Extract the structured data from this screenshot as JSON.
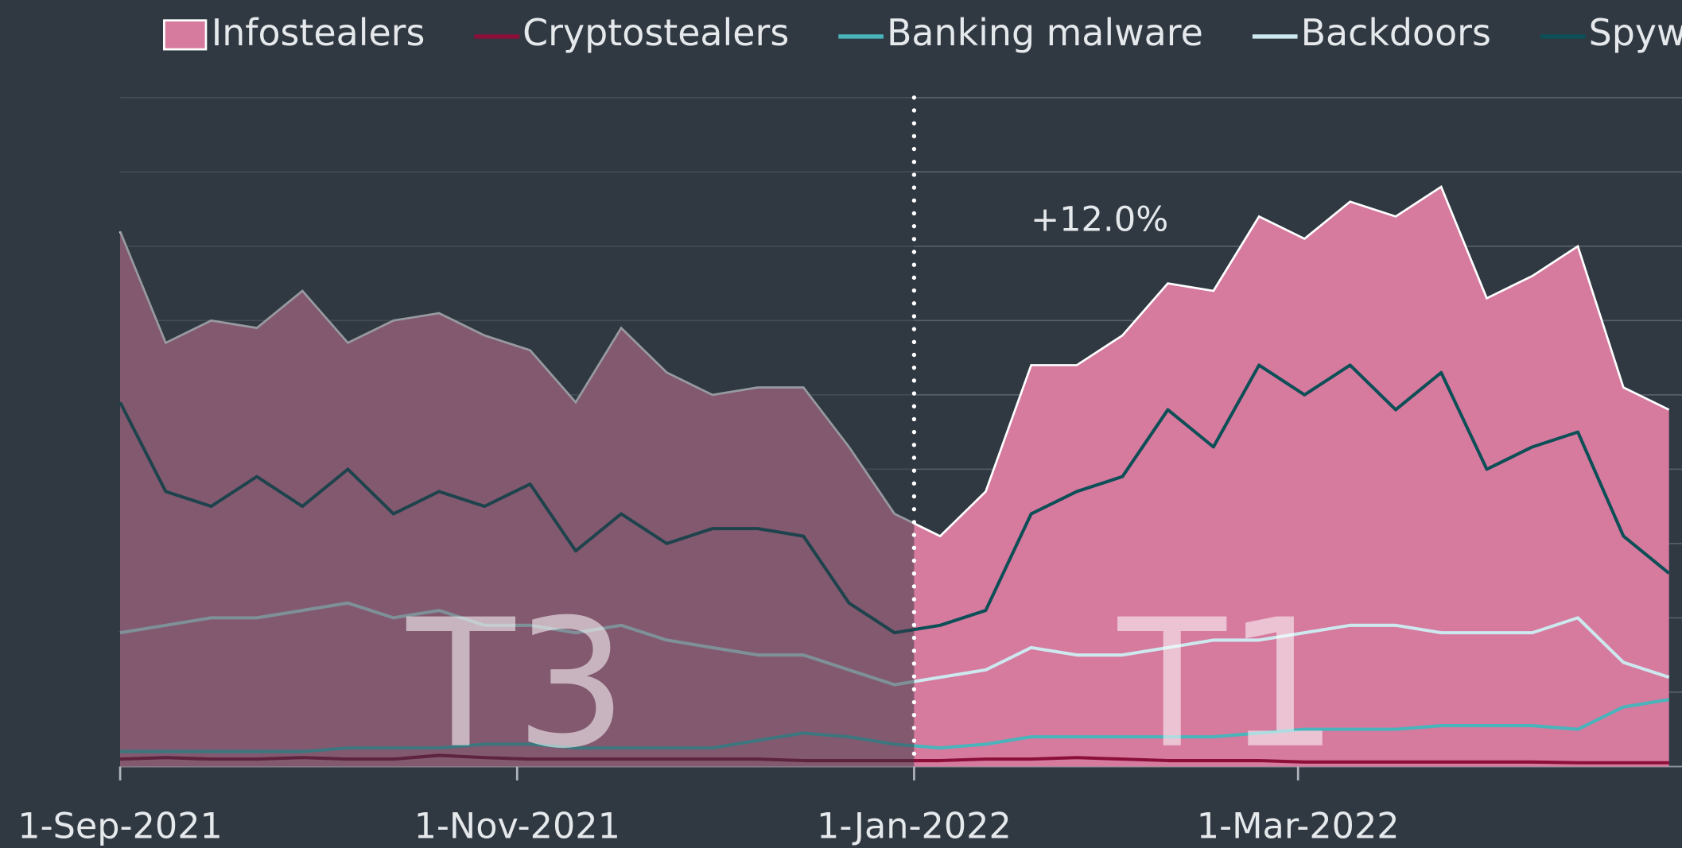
{
  "chart_data": {
    "type": "line",
    "x": [
      "2021-09-01",
      "2021-09-08",
      "2021-09-15",
      "2021-09-22",
      "2021-09-29",
      "2021-10-06",
      "2021-10-13",
      "2021-10-20",
      "2021-10-27",
      "2021-11-03",
      "2021-11-10",
      "2021-11-17",
      "2021-11-24",
      "2021-12-01",
      "2021-12-08",
      "2021-12-15",
      "2021-12-22",
      "2021-12-29",
      "2022-01-05",
      "2022-01-12",
      "2022-01-19",
      "2022-01-26",
      "2022-02-02",
      "2022-02-09",
      "2022-02-16",
      "2022-02-23",
      "2022-03-02",
      "2022-03-09",
      "2022-03-16",
      "2022-03-23",
      "2022-03-30",
      "2022-04-06",
      "2022-04-13",
      "2022-04-20",
      "2022-04-27"
    ],
    "series": [
      {
        "name": "Infostealers",
        "color": "#d67a9e",
        "fill": true,
        "values": [
          7.2,
          5.7,
          6.0,
          5.9,
          6.4,
          5.7,
          6.0,
          6.1,
          5.8,
          5.6,
          4.9,
          5.9,
          5.3,
          5.0,
          5.1,
          5.1,
          4.3,
          3.4,
          3.1,
          3.7,
          5.4,
          5.4,
          5.8,
          6.5,
          6.4,
          7.4,
          7.1,
          7.6,
          7.4,
          7.8,
          6.3,
          6.6,
          7.0,
          5.1,
          4.8
        ]
      },
      {
        "name": "Cryptostealers",
        "color": "#8c0f3a",
        "values": [
          0.1,
          0.12,
          0.1,
          0.1,
          0.12,
          0.1,
          0.1,
          0.15,
          0.12,
          0.1,
          0.1,
          0.1,
          0.1,
          0.1,
          0.1,
          0.08,
          0.08,
          0.08,
          0.08,
          0.1,
          0.1,
          0.12,
          0.1,
          0.08,
          0.08,
          0.08,
          0.06,
          0.06,
          0.06,
          0.06,
          0.06,
          0.06,
          0.05,
          0.05,
          0.05
        ]
      },
      {
        "name": "Banking malware",
        "color": "#4ab4bb",
        "values": [
          0.2,
          0.2,
          0.2,
          0.2,
          0.2,
          0.25,
          0.25,
          0.25,
          0.3,
          0.3,
          0.25,
          0.25,
          0.25,
          0.25,
          0.35,
          0.45,
          0.4,
          0.3,
          0.25,
          0.3,
          0.4,
          0.4,
          0.4,
          0.4,
          0.4,
          0.45,
          0.5,
          0.5,
          0.5,
          0.55,
          0.55,
          0.55,
          0.5,
          0.8,
          0.9
        ]
      },
      {
        "name": "Backdoors",
        "color": "#cde8ee",
        "values": [
          1.8,
          1.9,
          2.0,
          2.0,
          2.1,
          2.2,
          2.0,
          2.1,
          1.9,
          1.9,
          1.8,
          1.9,
          1.7,
          1.6,
          1.5,
          1.5,
          1.3,
          1.1,
          1.2,
          1.3,
          1.6,
          1.5,
          1.5,
          1.6,
          1.7,
          1.7,
          1.8,
          1.9,
          1.9,
          1.8,
          1.8,
          1.8,
          2.0,
          1.4,
          1.2
        ]
      },
      {
        "name": "Spyware",
        "color": "#0d4f57",
        "values": [
          4.9,
          3.7,
          3.5,
          3.9,
          3.5,
          4.0,
          3.4,
          3.7,
          3.5,
          3.8,
          2.9,
          3.4,
          3.0,
          3.2,
          3.2,
          3.1,
          2.2,
          1.8,
          1.9,
          2.1,
          3.4,
          3.7,
          3.9,
          4.8,
          4.3,
          5.4,
          5.0,
          5.4,
          4.8,
          5.3,
          4.0,
          4.3,
          4.5,
          3.1,
          2.6
        ]
      }
    ],
    "xlim": [
      "2021-09-01",
      "2022-04-29"
    ],
    "xticks": [
      {
        "value": "2021-09-01",
        "label": "1-Sep-2021"
      },
      {
        "value": "2021-11-01",
        "label": "1-Nov-2021"
      },
      {
        "value": "2022-01-01",
        "label": "1-Jan-2022"
      },
      {
        "value": "2022-03-01",
        "label": "1-Mar-2022"
      }
    ],
    "ylim": [
      0,
      9
    ],
    "yticks": [
      0,
      1,
      2,
      3,
      4,
      5,
      6,
      7,
      8,
      9
    ],
    "grid": true,
    "legend": "top",
    "period_divider": "2022-01-01",
    "period_labels": [
      "T3",
      "T1"
    ],
    "annotation": "+12.0%"
  }
}
